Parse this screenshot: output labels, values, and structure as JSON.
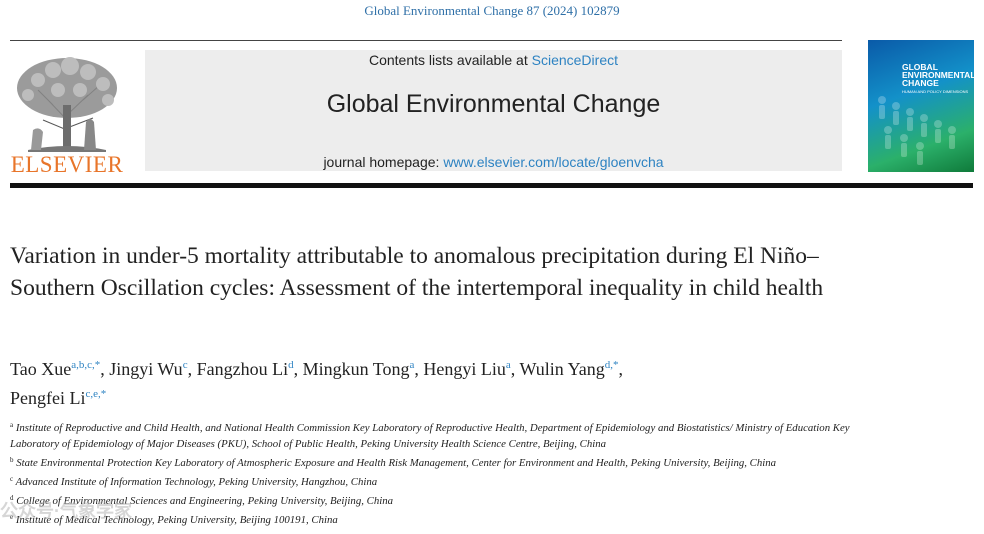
{
  "header": {
    "citation": "Global Environmental Change 87 (2024) 102879",
    "publisher_logo_text": "ELSEVIER",
    "contents_prefix": "Contents lists available at ",
    "contents_link": "ScienceDirect",
    "journal_title": "Global Environmental Change",
    "homepage_prefix": "journal homepage: ",
    "homepage_link": "www.elsevier.com/locate/gloenvcha",
    "cover": {
      "line1": "GLOBAL",
      "line2": "ENVIRONMENTAL",
      "line3": "CHANGE",
      "subline": "HUMAN AND POLICY DIMENSIONS"
    }
  },
  "article": {
    "title": "Variation in under-5 mortality attributable to anomalous precipitation during El Niño–Southern Oscillation cycles: Assessment of the intertemporal inequality in child health",
    "authors": [
      {
        "name": "Tao Xue",
        "sup": "a,b,c,*",
        "sep": ", "
      },
      {
        "name": "Jingyi Wu",
        "sup": "c",
        "sep": ", "
      },
      {
        "name": "Fangzhou Li",
        "sup": "d",
        "sep": ", "
      },
      {
        "name": "Mingkun Tong",
        "sup": "a",
        "sep": ", "
      },
      {
        "name": "Hengyi Liu",
        "sup": "a",
        "sep": ", "
      },
      {
        "name": "Wulin Yang",
        "sup": "d,*",
        "sep": ","
      },
      {
        "name": "Pengfei Li",
        "sup": "c,e,*",
        "sep": ""
      }
    ],
    "affiliations": [
      {
        "key": "a",
        "text": "Institute of Reproductive and Child Health, and National Health Commission Key Laboratory of Reproductive Health, Department of Epidemiology and Biostatistics/ Ministry of Education Key Laboratory of Epidemiology of Major Diseases (PKU), School of Public Health, Peking University Health Science Centre, Beijing, China"
      },
      {
        "key": "b",
        "text": "State Environmental Protection Key Laboratory of Atmospheric Exposure and Health Risk Management, Center for Environment and Health, Peking University, Beijing, China"
      },
      {
        "key": "c",
        "text": "Advanced Institute of Information Technology, Peking University, Hangzhou, China"
      },
      {
        "key": "d",
        "text": "College of Environmental Sciences and Engineering, Peking University, Beijing, China"
      },
      {
        "key": "e",
        "text": "Institute of Medical Technology, Peking University, Beijing 100191, China"
      }
    ]
  },
  "watermark": "公众号·气象学家"
}
